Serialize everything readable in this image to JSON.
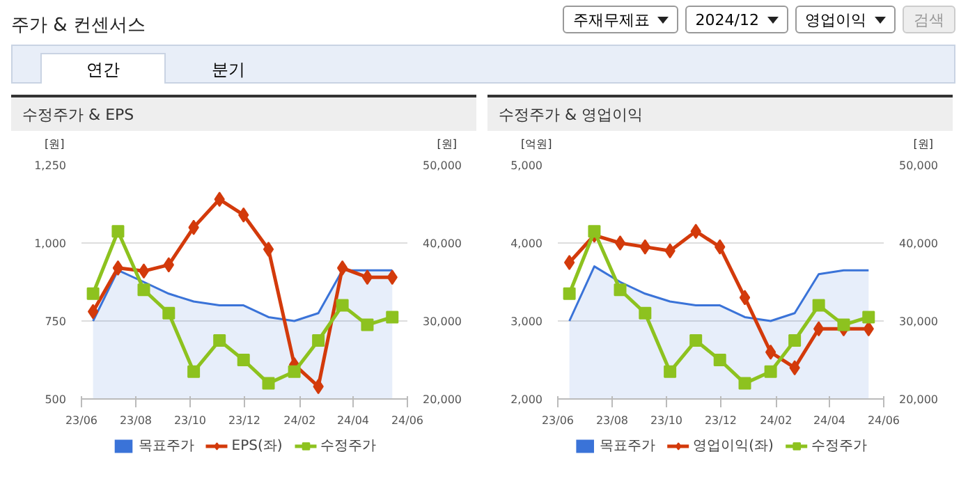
{
  "chart_data": [
    {
      "type": "other",
      "title": "주가 & 컨센서스",
      "annotations": [
        "주재무제표",
        "2024/12",
        "영업이익",
        "검색",
        "연간",
        "분기"
      ]
    },
    {
      "type": "line",
      "title": "수정주가 & EPS",
      "ylabel": "[원]",
      "y2label": "[원]",
      "x": [
        "2023-06-14",
        "2023-07-12",
        "2023-08-10",
        "2023-09-07",
        "2023-10-05",
        "2023-11-03",
        "2023-11-30",
        "2023-12-28",
        "2024-01-26",
        "2024-02-22",
        "2024-03-20",
        "2024-04-17",
        "2024-05-15"
      ],
      "xlim": [
        "2023-06",
        "2024-06"
      ],
      "xticks": [
        {
          "value": "2023-06",
          "label": "23/06"
        },
        {
          "value": "2023-08",
          "label": "23/08"
        },
        {
          "value": "2023-10",
          "label": "23/10"
        },
        {
          "value": "2023-12",
          "label": "23/12"
        },
        {
          "value": "2024-02",
          "label": "24/02"
        },
        {
          "value": "2024-04",
          "label": "24/04"
        },
        {
          "value": "2024-06",
          "label": "24/06"
        }
      ],
      "ylim": [
        500,
        1250
      ],
      "yticks": [
        {
          "value": 500,
          "label": "500"
        },
        {
          "value": 750,
          "label": "750"
        },
        {
          "value": 1000,
          "label": "1,000"
        },
        {
          "value": 1250,
          "label": "1,250"
        }
      ],
      "y2lim": [
        20000,
        50000
      ],
      "y2ticks": [
        {
          "value": 20000,
          "label": "20,000"
        },
        {
          "value": 30000,
          "label": "30,000"
        },
        {
          "value": 40000,
          "label": "40,000"
        },
        {
          "value": 50000,
          "label": "50,000"
        }
      ],
      "grid": "y",
      "legend": "bottom",
      "series": [
        {
          "name": "목표주가",
          "type": "area",
          "axis": "y2",
          "color": "#3a73d8",
          "marker": "none",
          "values": [
            30000,
            36500,
            35000,
            33500,
            32500,
            32000,
            32000,
            30500,
            30000,
            31000,
            36500,
            36500,
            36500
          ]
        },
        {
          "name": "EPS(좌)",
          "type": "line",
          "color": "#d33a0b",
          "marker": "diamond",
          "values": [
            780,
            920,
            910,
            930,
            1050,
            1140,
            1090,
            980,
            610,
            540,
            920,
            890,
            890
          ]
        },
        {
          "name": "수정주가",
          "type": "line",
          "axis": "y2",
          "color": "#8dc21f",
          "marker": "square",
          "values": [
            33500,
            41500,
            34000,
            31000,
            23500,
            27500,
            25000,
            22000,
            23500,
            27500,
            32000,
            29500,
            30500
          ]
        }
      ]
    },
    {
      "type": "line",
      "title": "수정주가 & 영업이익",
      "ylabel": "[억원]",
      "y2label": "[원]",
      "x": [
        "2023-06-14",
        "2023-07-12",
        "2023-08-10",
        "2023-09-07",
        "2023-10-05",
        "2023-11-03",
        "2023-11-30",
        "2023-12-28",
        "2024-01-26",
        "2024-02-22",
        "2024-03-20",
        "2024-04-17",
        "2024-05-15"
      ],
      "xlim": [
        "2023-06",
        "2024-06"
      ],
      "xticks": [
        {
          "value": "2023-06",
          "label": "23/06"
        },
        {
          "value": "2023-08",
          "label": "23/08"
        },
        {
          "value": "2023-10",
          "label": "23/10"
        },
        {
          "value": "2023-12",
          "label": "23/12"
        },
        {
          "value": "2024-02",
          "label": "24/02"
        },
        {
          "value": "2024-04",
          "label": "24/04"
        },
        {
          "value": "2024-06",
          "label": "24/06"
        }
      ],
      "ylim": [
        2000,
        5000
      ],
      "yticks": [
        {
          "value": 2000,
          "label": "2,000"
        },
        {
          "value": 3000,
          "label": "3,000"
        },
        {
          "value": 4000,
          "label": "4,000"
        },
        {
          "value": 5000,
          "label": "5,000"
        }
      ],
      "y2lim": [
        20000,
        50000
      ],
      "y2ticks": [
        {
          "value": 20000,
          "label": "20,000"
        },
        {
          "value": 30000,
          "label": "30,000"
        },
        {
          "value": 40000,
          "label": "40,000"
        },
        {
          "value": 50000,
          "label": "50,000"
        }
      ],
      "grid": "y",
      "legend": "bottom",
      "series": [
        {
          "name": "목표주가",
          "type": "area",
          "axis": "y2",
          "color": "#3a73d8",
          "marker": "none",
          "values": [
            30000,
            37000,
            35000,
            33500,
            32500,
            32000,
            32000,
            30500,
            30000,
            31000,
            36000,
            36500,
            36500
          ]
        },
        {
          "name": "영업이익(좌)",
          "type": "line",
          "color": "#d33a0b",
          "marker": "diamond",
          "values": [
            3750,
            4100,
            4000,
            3950,
            3900,
            4150,
            3950,
            3300,
            2600,
            2400,
            2900,
            2900,
            2900
          ]
        },
        {
          "name": "수정주가",
          "type": "line",
          "axis": "y2",
          "color": "#8dc21f",
          "marker": "square",
          "values": [
            33500,
            41500,
            34000,
            31000,
            23500,
            27500,
            25000,
            22000,
            23500,
            27500,
            32000,
            29500,
            30500
          ]
        }
      ]
    }
  ]
}
